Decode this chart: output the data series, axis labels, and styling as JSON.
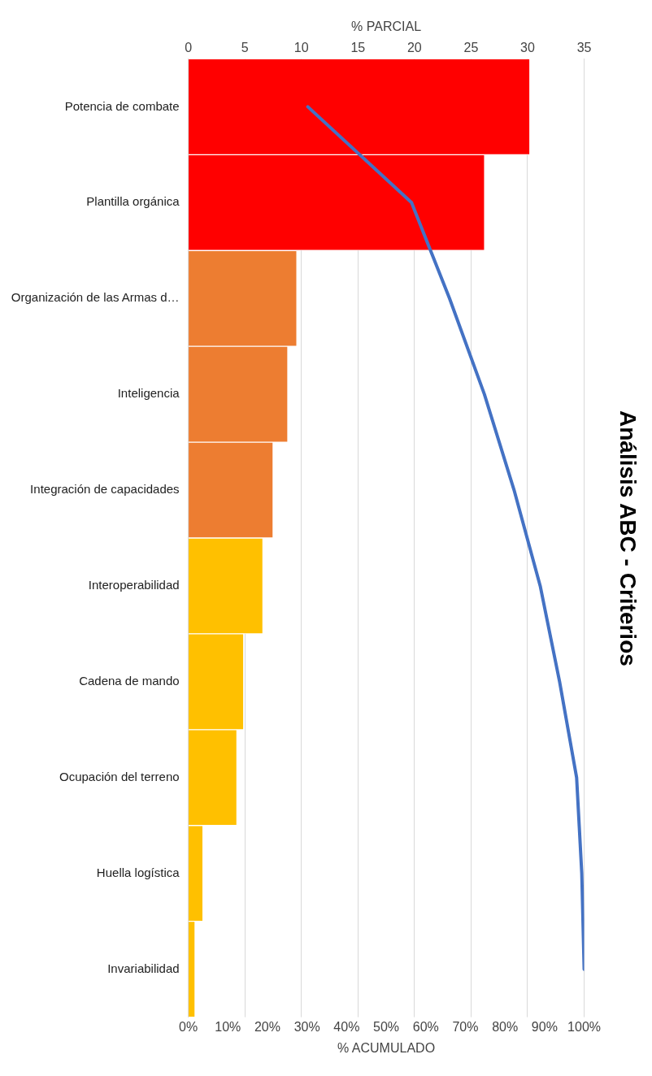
{
  "chart_data": {
    "type": "bar",
    "orientation": "horizontal",
    "title": "Análisis ABC - Criterios",
    "x2label": "% PARCIAL",
    "xlabel": "% ACUMULADO",
    "categories": [
      "Potencia de combate",
      "Plantilla orgánica",
      "Organización de las Armas d…",
      "Inteligencia",
      "Integración de capacidades",
      "Interoperabilidad",
      "Cadena de mando",
      "Ocupación del terreno",
      "Huella logística",
      "Invariabilidad"
    ],
    "series": [
      {
        "axis": "x2",
        "values": [
          30.2,
          26.2,
          9.6,
          8.8,
          7.5,
          6.6,
          4.9,
          4.3,
          1.3,
          0.6
        ],
        "colors": [
          "#ff0000",
          "#ff0000",
          "#ed7d31",
          "#ed7d31",
          "#ed7d31",
          "#ffc000",
          "#ffc000",
          "#ffc000",
          "#ffc000",
          "#ffc000"
        ]
      },
      {
        "type": "line",
        "color": "#4472c4",
        "values": [
          30.2,
          56.4,
          66.0,
          74.8,
          82.3,
          88.9,
          93.8,
          98.1,
          99.4,
          100
        ]
      }
    ],
    "x2lim": [
      0,
      35
    ],
    "x2ticks": [
      0,
      5,
      10,
      15,
      20,
      25,
      30,
      35
    ],
    "xlim": [
      0,
      100
    ],
    "xticks": [
      {
        "value": 0,
        "label": "0%"
      },
      {
        "value": 10,
        "label": "10%"
      },
      {
        "value": 20,
        "label": "20%"
      },
      {
        "value": 30,
        "label": "30%"
      },
      {
        "value": 40,
        "label": "40%"
      },
      {
        "value": 50,
        "label": "50%"
      },
      {
        "value": 60,
        "label": "60%"
      },
      {
        "value": 70,
        "label": "70%"
      },
      {
        "value": 80,
        "label": "80%"
      },
      {
        "value": 90,
        "label": "90%"
      },
      {
        "value": 100,
        "label": "100%"
      }
    ],
    "grid": "x2",
    "marker": "none",
    "line_style": "solid"
  }
}
